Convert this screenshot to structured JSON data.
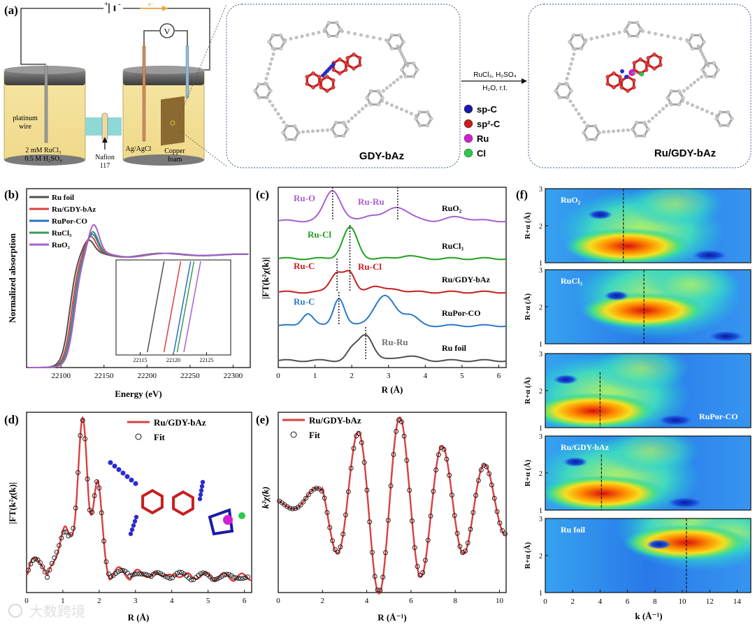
{
  "panels": {
    "a": "(a)",
    "b": "(b)",
    "c": "(c)",
    "d": "(d)",
    "e": "(e)",
    "f": "(f)"
  },
  "cell": {
    "platinum_line1": "platinum",
    "platinum_line2": "wire",
    "electrolyte_line1": "2 mM RuCl₃",
    "electrolyte_line2": "0.5 M H₂SO₄",
    "nafion_line1": "Nafion",
    "nafion_line2": "117",
    "reference": "Ag/AgCl",
    "copper_line1": "Copper",
    "copper_line2": "foam",
    "voltmeter": "V",
    "battery_plus": "+",
    "battery_minus": "-",
    "electron": "e⁻"
  },
  "structures": {
    "left_label": "GDY-bAz",
    "right_label": "Ru/GDY-bAz",
    "reaction_line1": "RuCl₃, H₂SO₄",
    "reaction_line2": "H₂O, r.t.",
    "legend": [
      {
        "label": "sp-C",
        "color": "#1a1aa8"
      },
      {
        "label": "sp²-C",
        "color": "#c81e1e"
      },
      {
        "label": "Ru",
        "color": "#d020d0"
      },
      {
        "label": "Cl",
        "color": "#2ec84a"
      }
    ]
  },
  "chart_data": [
    {
      "id": "b",
      "type": "line",
      "title": "",
      "xlabel": "Energy (eV)",
      "ylabel": "Normalized absorption",
      "xlim": [
        22060,
        22320
      ],
      "xticks": [
        "22100",
        "22150",
        "22200",
        "22250",
        "22300"
      ],
      "legend": [
        {
          "name": "Ru foil",
          "color": "#505050"
        },
        {
          "name": "Ru/GDY-bAz",
          "color": "#d94040"
        },
        {
          "name": "RuPor-CO",
          "color": "#2a70c0"
        },
        {
          "name": "RuCl₃",
          "color": "#3a9a5a"
        },
        {
          "name": "RuO₂",
          "color": "#a860d0"
        }
      ],
      "inset_xticks": [
        "22115",
        "22120",
        "22125"
      ],
      "inset_edges_eV": [
        22116.5,
        22119.0,
        22120.5,
        22121.0,
        22122.0
      ]
    },
    {
      "id": "c",
      "type": "line",
      "xlabel": "R (Å)",
      "ylabel": "|FT(k²χ(k)|",
      "xlim": [
        0,
        6.2
      ],
      "xticks": [
        "0",
        "1",
        "2",
        "3",
        "4",
        "5",
        "6"
      ],
      "series": [
        {
          "name": "RuO₂",
          "color": "#a860d0",
          "peaks": [
            1.48,
            3.25
          ]
        },
        {
          "name": "RuCl₃",
          "color": "#20a020",
          "peaks": [
            1.95
          ]
        },
        {
          "name": "Ru/GDY-bAz",
          "color": "#c81e1e",
          "peaks": [
            1.6,
            1.95
          ]
        },
        {
          "name": "RuPor-CO",
          "color": "#2a7ac8",
          "peaks": [
            1.65
          ]
        },
        {
          "name": "Ru foil",
          "color": "#505050",
          "peaks": [
            2.38
          ]
        }
      ],
      "annotations": [
        {
          "text": "Ru-O",
          "color": "#a860d0"
        },
        {
          "text": "Ru-Ru",
          "color": "#a860d0"
        },
        {
          "text": "Ru-Cl",
          "color": "#20a020"
        },
        {
          "text": "Ru-C",
          "color": "#c81e1e"
        },
        {
          "text": "Ru-Cl",
          "color": "#c81e1e"
        },
        {
          "text": "Ru-C",
          "color": "#2a7ac8"
        },
        {
          "text": "Ru-Ru",
          "color": "#707070"
        }
      ]
    },
    {
      "id": "d",
      "type": "line",
      "xlabel": "R (Å)",
      "ylabel": "|FT(k²χ(k)|",
      "xlim": [
        0,
        6.2
      ],
      "xticks": [
        "0",
        "1",
        "2",
        "3",
        "4",
        "5",
        "6"
      ],
      "legend": [
        {
          "name": "Ru/GDY-bAz",
          "color": "#d94040"
        },
        {
          "name": "Fit",
          "color": "#000000"
        }
      ]
    },
    {
      "id": "e",
      "type": "line",
      "xlabel": "R (Å⁻¹)",
      "ylabel": "k²χ(k)",
      "xlim": [
        0,
        10.3
      ],
      "xticks": [
        "0",
        "2",
        "4",
        "6",
        "8",
        "10"
      ],
      "legend": [
        {
          "name": "Ru/GDY-bAz",
          "color": "#d94040"
        },
        {
          "name": "Fit",
          "color": "#000000"
        }
      ]
    },
    {
      "id": "f",
      "type": "heatmap",
      "xlabel": "k (Å⁻¹)",
      "ylabel": "R+α (Å)",
      "xlim": [
        0,
        15
      ],
      "ylim": [
        1,
        3
      ],
      "xticks": [
        "0",
        "2",
        "4",
        "6",
        "8",
        "10",
        "12",
        "14"
      ],
      "yticks": [
        "1",
        "2",
        "3"
      ],
      "maps": [
        {
          "label": "RuO₂",
          "dashed_k": 5.7,
          "center_k": 6.0,
          "center_R": 1.45
        },
        {
          "label": "RuCl₃",
          "dashed_k": 7.2,
          "center_k": 7.2,
          "center_R": 1.9
        },
        {
          "label": "RuPor-CO",
          "dashed_k": 4.0,
          "center_k": 3.5,
          "center_R": 1.45
        },
        {
          "label": "Ru/GDY-bAz",
          "dashed_k": 4.1,
          "center_k": 4.2,
          "center_R": 1.45
        },
        {
          "label": "Ru foil",
          "dashed_k": 10.3,
          "center_k": 10.3,
          "center_R": 2.35
        }
      ]
    }
  ],
  "watermark": "大数跨境"
}
